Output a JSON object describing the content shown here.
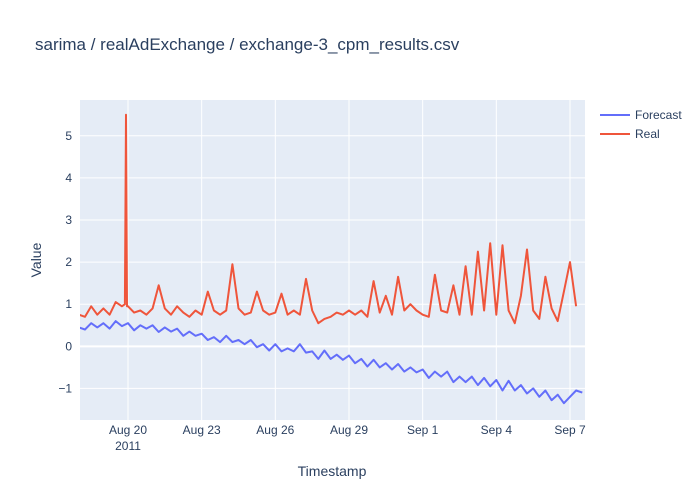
{
  "chart_data": {
    "type": "line",
    "title": "sarima / realAdExchange / exchange-3_cpm_results.csv",
    "xlabel": "Timestamp",
    "ylabel": "Value",
    "x_range": [
      "2011-07-18",
      "2011-09-07"
    ],
    "ylim": [
      -1.75,
      5.85
    ],
    "x_ticks": [
      {
        "date": "2011-08-20",
        "label": "Aug 20",
        "sublabel": "2011"
      },
      {
        "date": "2011-08-23",
        "label": "Aug 23"
      },
      {
        "date": "2011-08-26",
        "label": "Aug 26"
      },
      {
        "date": "2011-08-29",
        "label": "Aug 29"
      },
      {
        "date": "2011-09-01",
        "label": "Sep 1"
      },
      {
        "date": "2011-09-04",
        "label": "Sep 4"
      },
      {
        "date": "2011-09-07",
        "label": "Sep 7"
      }
    ],
    "y_ticks": [
      -1,
      0,
      1,
      2,
      3,
      4,
      5
    ],
    "y_tick_labels": [
      "−1",
      "0",
      "1",
      "2",
      "3",
      "4",
      "5"
    ],
    "grid": true,
    "legend_position": "top-right",
    "series": [
      {
        "name": "Forecast",
        "color": "#636efa",
        "points": [
          [
            "2011-08-18 00:00",
            0.45
          ],
          [
            "2011-08-18 06:00",
            0.4
          ],
          [
            "2011-08-18 12:00",
            0.55
          ],
          [
            "2011-08-18 18:00",
            0.45
          ],
          [
            "2011-08-19 00:00",
            0.55
          ],
          [
            "2011-08-19 06:00",
            0.42
          ],
          [
            "2011-08-19 12:00",
            0.6
          ],
          [
            "2011-08-19 18:00",
            0.48
          ],
          [
            "2011-08-20 00:00",
            0.55
          ],
          [
            "2011-08-20 06:00",
            0.38
          ],
          [
            "2011-08-20 12:00",
            0.5
          ],
          [
            "2011-08-20 18:00",
            0.42
          ],
          [
            "2011-08-21 00:00",
            0.5
          ],
          [
            "2011-08-21 06:00",
            0.34
          ],
          [
            "2011-08-21 12:00",
            0.45
          ],
          [
            "2011-08-21 18:00",
            0.35
          ],
          [
            "2011-08-22 00:00",
            0.42
          ],
          [
            "2011-08-22 06:00",
            0.25
          ],
          [
            "2011-08-22 12:00",
            0.35
          ],
          [
            "2011-08-22 18:00",
            0.25
          ],
          [
            "2011-08-23 00:00",
            0.3
          ],
          [
            "2011-08-23 06:00",
            0.15
          ],
          [
            "2011-08-23 12:00",
            0.22
          ],
          [
            "2011-08-23 18:00",
            0.1
          ],
          [
            "2011-08-24 00:00",
            0.25
          ],
          [
            "2011-08-24 06:00",
            0.1
          ],
          [
            "2011-08-24 12:00",
            0.15
          ],
          [
            "2011-08-24 18:00",
            0.05
          ],
          [
            "2011-08-25 00:00",
            0.15
          ],
          [
            "2011-08-25 06:00",
            -0.02
          ],
          [
            "2011-08-25 12:00",
            0.05
          ],
          [
            "2011-08-25 18:00",
            -0.1
          ],
          [
            "2011-08-26 00:00",
            0.05
          ],
          [
            "2011-08-26 06:00",
            -0.12
          ],
          [
            "2011-08-26 12:00",
            -0.05
          ],
          [
            "2011-08-26 18:00",
            -0.12
          ],
          [
            "2011-08-27 00:00",
            0.05
          ],
          [
            "2011-08-27 06:00",
            -0.15
          ],
          [
            "2011-08-27 12:00",
            -0.12
          ],
          [
            "2011-08-27 18:00",
            -0.3
          ],
          [
            "2011-08-28 00:00",
            -0.1
          ],
          [
            "2011-08-28 06:00",
            -0.3
          ],
          [
            "2011-08-28 12:00",
            -0.2
          ],
          [
            "2011-08-28 18:00",
            -0.32
          ],
          [
            "2011-08-29 00:00",
            -0.22
          ],
          [
            "2011-08-29 06:00",
            -0.4
          ],
          [
            "2011-08-29 12:00",
            -0.3
          ],
          [
            "2011-08-29 18:00",
            -0.48
          ],
          [
            "2011-08-30 00:00",
            -0.32
          ],
          [
            "2011-08-30 06:00",
            -0.5
          ],
          [
            "2011-08-30 12:00",
            -0.4
          ],
          [
            "2011-08-30 18:00",
            -0.55
          ],
          [
            "2011-08-31 00:00",
            -0.42
          ],
          [
            "2011-08-31 06:00",
            -0.6
          ],
          [
            "2011-08-31 12:00",
            -0.5
          ],
          [
            "2011-08-31 18:00",
            -0.62
          ],
          [
            "2011-09-01 00:00",
            -0.55
          ],
          [
            "2011-09-01 06:00",
            -0.75
          ],
          [
            "2011-09-01 12:00",
            -0.6
          ],
          [
            "2011-09-01 18:00",
            -0.72
          ],
          [
            "2011-09-02 00:00",
            -0.6
          ],
          [
            "2011-09-02 06:00",
            -0.85
          ],
          [
            "2011-09-02 12:00",
            -0.72
          ],
          [
            "2011-09-02 18:00",
            -0.85
          ],
          [
            "2011-09-03 00:00",
            -0.72
          ],
          [
            "2011-09-03 06:00",
            -0.92
          ],
          [
            "2011-09-03 12:00",
            -0.75
          ],
          [
            "2011-09-03 18:00",
            -0.95
          ],
          [
            "2011-09-04 00:00",
            -0.8
          ],
          [
            "2011-09-04 06:00",
            -1.05
          ],
          [
            "2011-09-04 12:00",
            -0.82
          ],
          [
            "2011-09-04 18:00",
            -1.05
          ],
          [
            "2011-09-05 00:00",
            -0.92
          ],
          [
            "2011-09-05 06:00",
            -1.12
          ],
          [
            "2011-09-05 12:00",
            -1.0
          ],
          [
            "2011-09-05 18:00",
            -1.2
          ],
          [
            "2011-09-06 00:00",
            -1.05
          ],
          [
            "2011-09-06 06:00",
            -1.28
          ],
          [
            "2011-09-06 12:00",
            -1.15
          ],
          [
            "2011-09-06 18:00",
            -1.35
          ],
          [
            "2011-09-07 00:00",
            -1.2
          ],
          [
            "2011-09-07 06:00",
            -1.05
          ],
          [
            "2011-09-07 12:00",
            -1.1
          ]
        ]
      },
      {
        "name": "Real",
        "color": "#ef553b",
        "points": [
          [
            "2011-08-18 00:00",
            0.75
          ],
          [
            "2011-08-18 06:00",
            0.7
          ],
          [
            "2011-08-18 12:00",
            0.95
          ],
          [
            "2011-08-18 18:00",
            0.75
          ],
          [
            "2011-08-19 00:00",
            0.9
          ],
          [
            "2011-08-19 06:00",
            0.75
          ],
          [
            "2011-08-19 12:00",
            1.05
          ],
          [
            "2011-08-19 18:00",
            0.95
          ],
          [
            "2011-08-19 21:00",
            1.0
          ],
          [
            "2011-08-19 22:00",
            5.5
          ],
          [
            "2011-08-19 23:00",
            0.95
          ],
          [
            "2011-08-20 00:00",
            0.95
          ],
          [
            "2011-08-20 06:00",
            0.8
          ],
          [
            "2011-08-20 12:00",
            0.85
          ],
          [
            "2011-08-20 18:00",
            0.75
          ],
          [
            "2011-08-21 00:00",
            0.9
          ],
          [
            "2011-08-21 06:00",
            1.45
          ],
          [
            "2011-08-21 12:00",
            0.9
          ],
          [
            "2011-08-21 18:00",
            0.75
          ],
          [
            "2011-08-22 00:00",
            0.95
          ],
          [
            "2011-08-22 06:00",
            0.8
          ],
          [
            "2011-08-22 12:00",
            0.7
          ],
          [
            "2011-08-22 18:00",
            0.85
          ],
          [
            "2011-08-23 00:00",
            0.75
          ],
          [
            "2011-08-23 06:00",
            1.3
          ],
          [
            "2011-08-23 12:00",
            0.85
          ],
          [
            "2011-08-23 18:00",
            0.75
          ],
          [
            "2011-08-24 00:00",
            0.85
          ],
          [
            "2011-08-24 06:00",
            1.95
          ],
          [
            "2011-08-24 12:00",
            0.9
          ],
          [
            "2011-08-24 18:00",
            0.75
          ],
          [
            "2011-08-25 00:00",
            0.8
          ],
          [
            "2011-08-25 06:00",
            1.3
          ],
          [
            "2011-08-25 12:00",
            0.85
          ],
          [
            "2011-08-25 18:00",
            0.75
          ],
          [
            "2011-08-26 00:00",
            0.8
          ],
          [
            "2011-08-26 06:00",
            1.25
          ],
          [
            "2011-08-26 12:00",
            0.75
          ],
          [
            "2011-08-26 18:00",
            0.85
          ],
          [
            "2011-08-27 00:00",
            0.75
          ],
          [
            "2011-08-27 06:00",
            1.6
          ],
          [
            "2011-08-27 12:00",
            0.85
          ],
          [
            "2011-08-27 18:00",
            0.55
          ],
          [
            "2011-08-28 00:00",
            0.65
          ],
          [
            "2011-08-28 06:00",
            0.7
          ],
          [
            "2011-08-28 12:00",
            0.8
          ],
          [
            "2011-08-28 18:00",
            0.75
          ],
          [
            "2011-08-29 00:00",
            0.85
          ],
          [
            "2011-08-29 06:00",
            0.75
          ],
          [
            "2011-08-29 12:00",
            0.85
          ],
          [
            "2011-08-29 18:00",
            0.7
          ],
          [
            "2011-08-30 00:00",
            1.55
          ],
          [
            "2011-08-30 06:00",
            0.8
          ],
          [
            "2011-08-30 12:00",
            1.2
          ],
          [
            "2011-08-30 18:00",
            0.75
          ],
          [
            "2011-08-31 00:00",
            1.65
          ],
          [
            "2011-08-31 06:00",
            0.85
          ],
          [
            "2011-08-31 12:00",
            1.0
          ],
          [
            "2011-08-31 18:00",
            0.85
          ],
          [
            "2011-09-01 00:00",
            0.75
          ],
          [
            "2011-09-01 06:00",
            0.7
          ],
          [
            "2011-09-01 12:00",
            1.7
          ],
          [
            "2011-09-01 18:00",
            0.85
          ],
          [
            "2011-09-02 00:00",
            0.8
          ],
          [
            "2011-09-02 06:00",
            1.45
          ],
          [
            "2011-09-02 12:00",
            0.75
          ],
          [
            "2011-09-02 18:00",
            1.9
          ],
          [
            "2011-09-03 00:00",
            0.75
          ],
          [
            "2011-09-03 06:00",
            2.25
          ],
          [
            "2011-09-03 12:00",
            0.85
          ],
          [
            "2011-09-03 18:00",
            2.45
          ],
          [
            "2011-09-04 00:00",
            0.75
          ],
          [
            "2011-09-04 06:00",
            2.4
          ],
          [
            "2011-09-04 12:00",
            0.85
          ],
          [
            "2011-09-04 18:00",
            0.55
          ],
          [
            "2011-09-05 00:00",
            1.2
          ],
          [
            "2011-09-05 06:00",
            2.3
          ],
          [
            "2011-09-05 12:00",
            0.85
          ],
          [
            "2011-09-05 18:00",
            0.65
          ],
          [
            "2011-09-06 00:00",
            1.65
          ],
          [
            "2011-09-06 06:00",
            0.9
          ],
          [
            "2011-09-06 12:00",
            0.6
          ],
          [
            "2011-09-06 18:00",
            1.3
          ],
          [
            "2011-09-07 00:00",
            2.0
          ],
          [
            "2011-09-07 06:00",
            0.95
          ]
        ]
      }
    ]
  }
}
